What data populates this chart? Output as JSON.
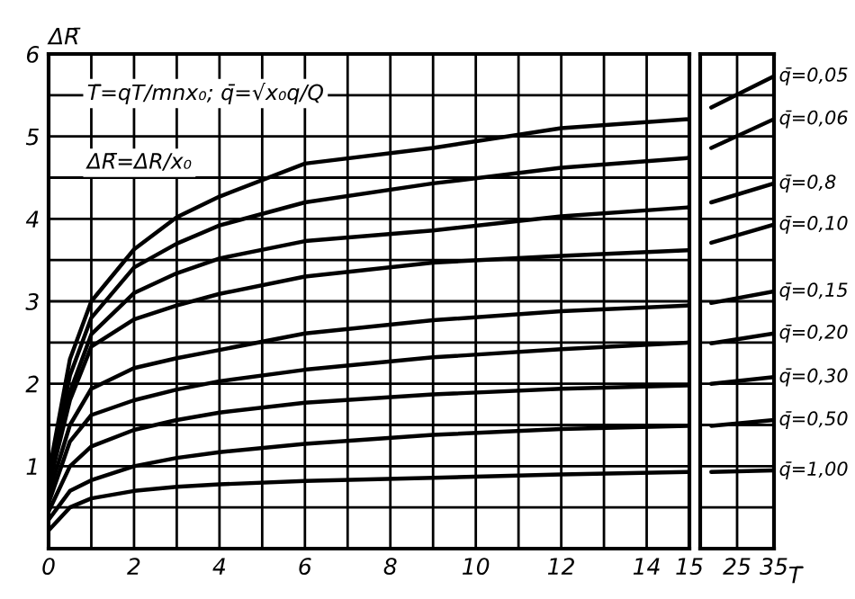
{
  "chart_data": [
    {
      "type": "line",
      "ylabel": "ΔR̄",
      "xlim": [
        0,
        15
      ],
      "ylim": [
        0,
        6
      ],
      "xticks": [
        0,
        {
          "value": 1,
          "label": null
        },
        2,
        {
          "value": 3,
          "label": null
        },
        4,
        {
          "value": 5,
          "label": null
        },
        6,
        {
          "value": 7,
          "label": null
        },
        8,
        {
          "value": 9,
          "label": null
        },
        10,
        {
          "value": 11,
          "label": null
        },
        12,
        {
          "value": 13,
          "label": null
        },
        14,
        15
      ],
      "yticks": [
        {
          "value": 0,
          "label": null
        },
        {
          "value": 0.5,
          "label": null
        },
        1,
        {
          "value": 1.5,
          "label": null
        },
        2,
        {
          "value": 2.5,
          "label": null
        },
        3,
        {
          "value": 3.5,
          "label": null
        },
        4,
        {
          "value": 4.5,
          "label": null
        },
        5,
        {
          "value": 5.5,
          "label": null
        },
        6
      ],
      "grid": true,
      "marker": "none",
      "line_style": "solid",
      "annotations": [
        "T̄=qT/mnx₀; q̄=√x₀q/Q",
        "ΔR̄=ΔR/x₀"
      ],
      "x": [
        0,
        0.5,
        1,
        2,
        3,
        4,
        6,
        9,
        12,
        15
      ],
      "series": [
        {
          "color": "#000000",
          "values": [
            0.9,
            2.3,
            3.0,
            3.63,
            4.02,
            4.27,
            4.67,
            4.86,
            5.1,
            5.21
          ]
        },
        {
          "color": "#000000",
          "values": [
            0.85,
            2.1,
            2.8,
            3.41,
            3.7,
            3.92,
            4.2,
            4.43,
            4.62,
            4.74
          ]
        },
        {
          "color": "#000000",
          "values": [
            0.8,
            1.9,
            2.6,
            3.1,
            3.34,
            3.52,
            3.73,
            3.86,
            4.03,
            4.14
          ]
        },
        {
          "color": "#000000",
          "values": [
            0.75,
            1.8,
            2.45,
            2.78,
            2.95,
            3.09,
            3.3,
            3.47,
            3.55,
            3.62
          ]
        },
        {
          "color": "#000000",
          "values": [
            0.65,
            1.5,
            1.94,
            2.19,
            2.31,
            2.41,
            2.61,
            2.77,
            2.88,
            2.95
          ]
        },
        {
          "color": "#000000",
          "values": [
            0.55,
            1.3,
            1.62,
            1.8,
            1.93,
            2.03,
            2.17,
            2.32,
            2.42,
            2.5
          ]
        },
        {
          "color": "#000000",
          "values": [
            0.45,
            1.0,
            1.24,
            1.44,
            1.56,
            1.65,
            1.77,
            1.87,
            1.94,
            1.98
          ]
        },
        {
          "color": "#000000",
          "values": [
            0.35,
            0.7,
            0.83,
            1.0,
            1.1,
            1.17,
            1.27,
            1.38,
            1.45,
            1.49
          ]
        },
        {
          "color": "#000000",
          "values": [
            0.22,
            0.5,
            0.61,
            0.7,
            0.75,
            0.78,
            0.82,
            0.86,
            0.9,
            0.93
          ]
        }
      ]
    },
    {
      "type": "line",
      "xlabel": "T̄",
      "xlim": [
        15,
        35
      ],
      "ylim": [
        0,
        6
      ],
      "xticks": [
        25,
        35
      ],
      "yticks": [
        {
          "value": 0.5,
          "label": null
        },
        {
          "value": 1,
          "label": null
        },
        {
          "value": 1.5,
          "label": null
        },
        {
          "value": 2,
          "label": null
        },
        {
          "value": 2.5,
          "label": null
        },
        {
          "value": 3,
          "label": null
        },
        {
          "value": 3.5,
          "label": null
        },
        {
          "value": 4,
          "label": null
        },
        {
          "value": 4.5,
          "label": null
        },
        {
          "value": 5,
          "label": null
        },
        {
          "value": 5.5,
          "label": null
        }
      ],
      "tick_labels": "x",
      "grid": true,
      "marker": "none",
      "line_style": "solid",
      "x": [
        18,
        35
      ],
      "series": [
        {
          "name": "q̄=0,05",
          "color": "#000000",
          "values": [
            5.35,
            5.73
          ]
        },
        {
          "name": "q̄=0,06",
          "color": "#000000",
          "values": [
            4.86,
            5.21
          ]
        },
        {
          "name": "q̄=0,8",
          "color": "#000000",
          "values": [
            4.2,
            4.43
          ]
        },
        {
          "name": "q̄=0,10",
          "color": "#000000",
          "values": [
            3.71,
            3.93
          ]
        },
        {
          "name": "q̄=0,15",
          "color": "#000000",
          "values": [
            2.98,
            3.12
          ]
        },
        {
          "name": "q̄=0,20",
          "color": "#000000",
          "values": [
            2.49,
            2.61
          ]
        },
        {
          "name": "q̄=0,30",
          "color": "#000000",
          "values": [
            2.0,
            2.08
          ]
        },
        {
          "name": "q̄=0,50",
          "color": "#000000",
          "values": [
            1.49,
            1.56
          ]
        },
        {
          "name": "q̄=1,00",
          "color": "#000000",
          "values": [
            0.93,
            0.95
          ]
        }
      ]
    }
  ]
}
